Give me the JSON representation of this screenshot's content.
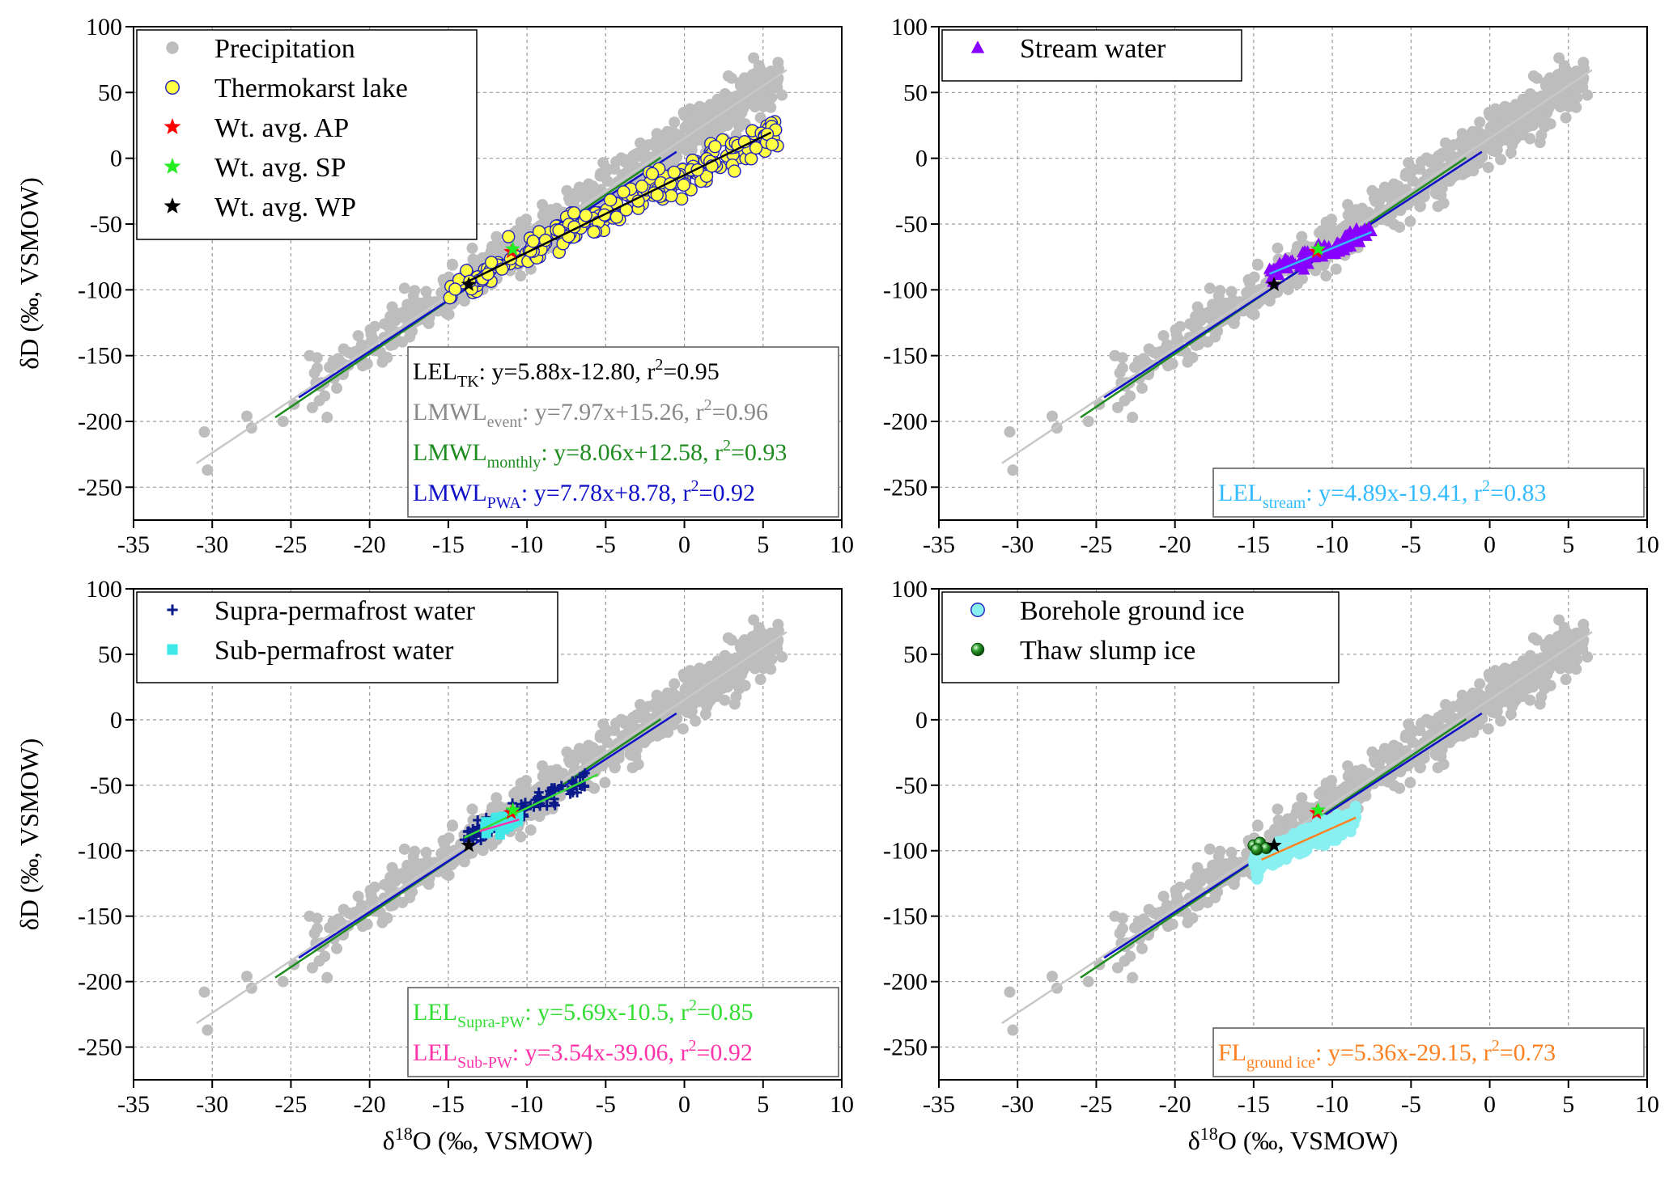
{
  "colors": {
    "precip": "#bdbdbd",
    "precip_line": "#c8c8c8",
    "monthly": "#1e8c1e",
    "pwa": "#1010c8",
    "tk_fill": "#ffff44",
    "tk_edge": "#2020c0",
    "star_ap": "#ff0000",
    "star_sp": "#22ee22",
    "star_wp": "#000000",
    "stream": "#8800ff",
    "stream_text": "#33bbff",
    "supra": "#0a1a8a",
    "sub": "#40e8e8",
    "supra_text": "#33dd33",
    "sub_text": "#ff33aa",
    "borehole": "#88f0f0",
    "slump": "#1a7a1a",
    "fl": "#ff8020"
  },
  "chart_data": [
    {
      "type": "scatter",
      "panel": "top-left",
      "xlabel": "",
      "ylabel": "δD (‰, VSMOW)",
      "xlim": [
        -35,
        10
      ],
      "ylim": [
        -275,
        100
      ],
      "xticks": [
        -35,
        -30,
        -25,
        -20,
        -15,
        -10,
        -5,
        0,
        5,
        10
      ],
      "yticks": [
        -250,
        -200,
        -150,
        -100,
        -50,
        0,
        50,
        100
      ],
      "grid": true,
      "legend_position": "top-left",
      "legend": [
        {
          "label": "Precipitation",
          "marker": "dot",
          "color": "#bdbdbd"
        },
        {
          "label": "Thermokarst lake",
          "marker": "circle",
          "color": "#ffff44"
        },
        {
          "label": "Wt. avg. AP",
          "marker": "star",
          "color": "#ff0000"
        },
        {
          "label": "Wt. avg. SP",
          "marker": "star",
          "color": "#22ee22"
        },
        {
          "label": "Wt. avg. WP",
          "marker": "star",
          "color": "#000000"
        }
      ],
      "series": [
        {
          "name": "Thermokarst lake",
          "marker": "circle",
          "x_range": [
            -15,
            6
          ],
          "slope": 5.88,
          "intercept": -12.8
        }
      ],
      "lines": [
        {
          "name": "LEL TK",
          "slope": 5.88,
          "intercept": -12.8,
          "x_range": [
            -14,
            5.5
          ],
          "color": "#000000"
        }
      ],
      "equations": [
        {
          "main": "LEL",
          "sub": "TK",
          "eq": ": y=5.88x-12.80, r",
          "sup": "2",
          "tail": "=0.95",
          "color": "#000000"
        },
        {
          "main": "LMWL",
          "sub": "event",
          "eq": ": y=7.97x+15.26, r",
          "sup": "2",
          "tail": "=0.96",
          "color": "#888888"
        },
        {
          "main": "LMWL",
          "sub": "monthly",
          "eq": ": y=8.06x+12.58, r",
          "sup": "2",
          "tail": "=0.93",
          "color": "#1e8c1e"
        },
        {
          "main": "LMWL",
          "sub": "PWA",
          "eq": ": y=7.78x+8.78, r",
          "sup": "2",
          "tail": "=0.92",
          "color": "#1010c8"
        }
      ]
    },
    {
      "type": "scatter",
      "panel": "top-right",
      "xlabel": "",
      "ylabel": "",
      "xlim": [
        -35,
        10
      ],
      "ylim": [
        -275,
        100
      ],
      "xticks": [
        -35,
        -30,
        -25,
        -20,
        -15,
        -10,
        -5,
        0,
        5,
        10
      ],
      "yticks": [
        -250,
        -200,
        -150,
        -100,
        -50,
        0,
        50,
        100
      ],
      "grid": true,
      "legend_position": "top-left",
      "legend": [
        {
          "label": "Stream water",
          "marker": "triangle",
          "color": "#8800ff"
        }
      ],
      "series": [
        {
          "name": "Stream water",
          "marker": "triangle",
          "x_range": [
            -14,
            -7.5
          ],
          "slope": 4.89,
          "intercept": -19.41
        }
      ],
      "lines": [
        {
          "name": "LEL stream",
          "slope": 4.89,
          "intercept": -19.41,
          "x_range": [
            -14,
            -7.5
          ],
          "color": "#33bbff"
        }
      ],
      "equations": [
        {
          "main": "LEL",
          "sub": "stream",
          "eq": ": y=4.89x-19.41, r",
          "sup": "2",
          "tail": "=0.83",
          "color": "#33bbff"
        }
      ]
    },
    {
      "type": "scatter",
      "panel": "bottom-left",
      "xlabel": "δ18O (‰, VSMOW)",
      "ylabel": "δD (‰, VSMOW)",
      "xlim": [
        -35,
        10
      ],
      "ylim": [
        -275,
        100
      ],
      "xticks": [
        -35,
        -30,
        -25,
        -20,
        -15,
        -10,
        -5,
        0,
        5,
        10
      ],
      "yticks": [
        -250,
        -200,
        -150,
        -100,
        -50,
        0,
        50,
        100
      ],
      "grid": true,
      "legend_position": "top-left",
      "legend": [
        {
          "label": "Supra-permafrost water",
          "marker": "plus",
          "color": "#0a1a8a"
        },
        {
          "label": "Sub-permafrost water",
          "marker": "square",
          "color": "#40e8e8"
        }
      ],
      "series": [
        {
          "name": "Supra-permafrost water",
          "marker": "plus",
          "x_range": [
            -14,
            -6
          ],
          "slope": 5.69,
          "intercept": -10.5
        },
        {
          "name": "Sub-permafrost water",
          "marker": "square",
          "x_range": [
            -13,
            -10.5
          ],
          "slope": 3.54,
          "intercept": -39.06
        }
      ],
      "lines": [
        {
          "name": "LEL Supra-PW",
          "slope": 5.69,
          "intercept": -10.5,
          "x_range": [
            -14,
            -5.5
          ],
          "color": "#33dd33"
        },
        {
          "name": "LEL Sub-PW",
          "slope": 3.54,
          "intercept": -39.06,
          "x_range": [
            -13,
            -10.5
          ],
          "color": "#ff33aa"
        }
      ],
      "equations": [
        {
          "main": "LEL",
          "sub": "Supra-PW",
          "eq": ": y=5.69x-10.5, r",
          "sup": "2",
          "tail": "=0.85",
          "color": "#33dd33"
        },
        {
          "main": "LEL",
          "sub": "Sub-PW",
          "eq": ": y=3.54x-39.06, r",
          "sup": "2",
          "tail": "=0.92",
          "color": "#ff33aa"
        }
      ]
    },
    {
      "type": "scatter",
      "panel": "bottom-right",
      "xlabel": "δ18O (‰, VSMOW)",
      "ylabel": "",
      "xlim": [
        -35,
        10
      ],
      "ylim": [
        -275,
        100
      ],
      "xticks": [
        -35,
        -30,
        -25,
        -20,
        -15,
        -10,
        -5,
        0,
        5,
        10
      ],
      "yticks": [
        -250,
        -200,
        -150,
        -100,
        -50,
        0,
        50,
        100
      ],
      "grid": true,
      "legend_position": "top-left",
      "legend": [
        {
          "label": "Borehole ground ice",
          "marker": "circle",
          "color": "#88f0f0"
        },
        {
          "label": "Thaw slump ice",
          "marker": "sphere",
          "color": "#1a7a1a"
        }
      ],
      "series": [
        {
          "name": "Borehole ground ice",
          "marker": "circle",
          "x_range": [
            -15,
            -8.5
          ],
          "slope": 5.36,
          "intercept": -29.15
        },
        {
          "name": "Thaw slump ice",
          "marker": "sphere",
          "points": [
            [
              -15,
              -96
            ],
            [
              -14.6,
              -94
            ],
            [
              -14.2,
              -98
            ],
            [
              -14.8,
              -99
            ]
          ]
        }
      ],
      "lines": [
        {
          "name": "FL ground ice",
          "slope": 5.36,
          "intercept": -29.15,
          "x_range": [
            -14.5,
            -8.5
          ],
          "color": "#ff8020"
        }
      ],
      "equations": [
        {
          "main": "FL",
          "sub": "ground ice",
          "eq": ": y=5.36x-29.15, r",
          "sup": "2",
          "tail": "=0.73",
          "color": "#ff8020"
        }
      ]
    }
  ],
  "common": {
    "precip_line": {
      "slope": 7.97,
      "intercept": 15.26,
      "x_range": [
        -31,
        6.5
      ]
    },
    "monthly_line": {
      "slope": 8.06,
      "intercept": 12.58,
      "x_range": [
        -26,
        -1.5
      ]
    },
    "pwa_line": {
      "slope": 7.78,
      "intercept": 8.78,
      "x_range": [
        -24.5,
        -0.5
      ]
    },
    "precip_extreme_points": [
      [
        -30.5,
        -208
      ],
      [
        -30.3,
        -237
      ],
      [
        -27.5,
        -205
      ],
      [
        -27.8,
        -196
      ],
      [
        -25.5,
        -200
      ],
      [
        -24.8,
        -187
      ],
      [
        6.2,
        48
      ],
      [
        5.8,
        63
      ],
      [
        4.5,
        58
      ],
      [
        3.2,
        12
      ]
    ],
    "stars": {
      "AP": [
        -11,
        -71
      ],
      "SP": [
        -10.9,
        -69
      ],
      "WP": [
        -13.7,
        -96
      ]
    }
  }
}
